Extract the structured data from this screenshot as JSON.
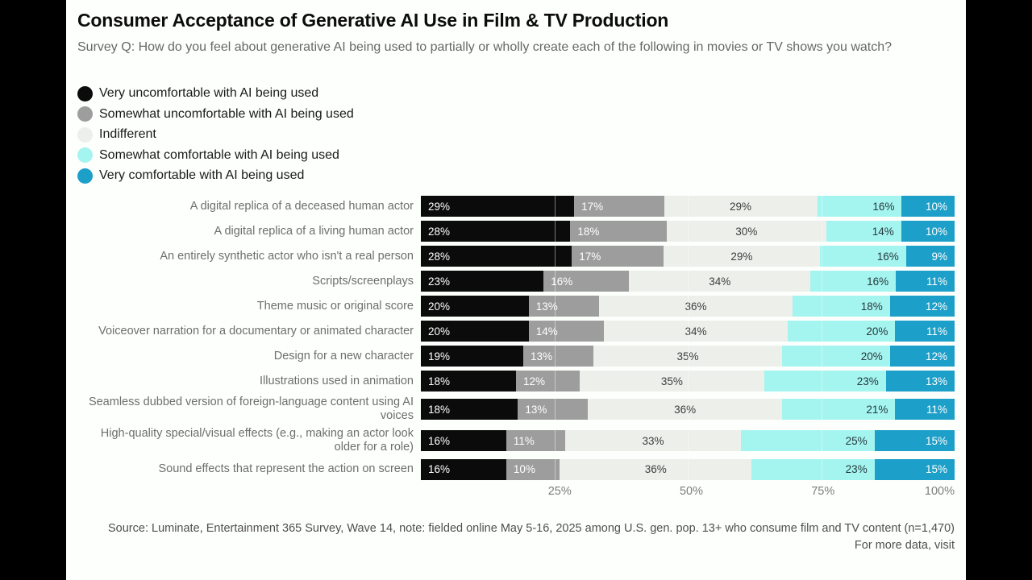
{
  "header": {
    "title": "Consumer Acceptance of Generative AI Use in Film & TV Production",
    "subtitle": "Survey Q: How do you feel about generative AI being used to partially or wholly create each of the following in movies or TV shows you watch?"
  },
  "chart_data": {
    "type": "bar",
    "stacked": true,
    "orientation": "horizontal",
    "value_unit": "%",
    "xlim": [
      0,
      100
    ],
    "x_ticks": [
      "25%",
      "50%",
      "75%",
      "100%"
    ],
    "x_tick_positions": [
      25,
      50,
      75,
      100
    ],
    "grid_positions": [
      25,
      50,
      75
    ],
    "legend_position": "top-left",
    "categories": [
      "A digital replica of a deceased human actor",
      "A digital replica of a living human actor",
      "An entirely synthetic actor who isn't a real person",
      "Scripts/screenplays",
      "Theme music or original score",
      "Voiceover narration for a documentary or animated character",
      "Design for a new character",
      "Illustrations used in animation",
      "Seamless dubbed version of foreign-language content using AI voices",
      "High-quality special/visual effects (e.g., making an actor look older for a role)",
      "Sound effects that represent the action on screen"
    ],
    "series": [
      {
        "name": "Very uncomfortable with AI being used",
        "color": "#0b0b0b",
        "values": [
          29,
          28,
          28,
          23,
          20,
          20,
          19,
          18,
          18,
          16,
          16
        ]
      },
      {
        "name": "Somewhat uncomfortable with AI being used",
        "color": "#9d9d9d",
        "values": [
          17,
          18,
          17,
          16,
          13,
          14,
          13,
          12,
          13,
          11,
          10
        ]
      },
      {
        "name": "Indifferent",
        "color": "#edefea",
        "values": [
          29,
          30,
          29,
          34,
          36,
          34,
          35,
          35,
          36,
          33,
          36
        ]
      },
      {
        "name": "Somewhat comfortable with AI being used",
        "color": "#a4f4f0",
        "values": [
          16,
          14,
          16,
          16,
          18,
          20,
          20,
          23,
          21,
          25,
          23
        ]
      },
      {
        "name": "Very comfortable with AI being used",
        "color": "#1c9fc8",
        "values": [
          10,
          10,
          9,
          11,
          12,
          11,
          12,
          13,
          11,
          15,
          15
        ]
      }
    ]
  },
  "footer": {
    "source": "Source: Luminate, Entertainment 365 Survey, Wave 14, note: fielded online May 5-16, 2025 among U.S. gen. pop. 13+ who consume film and TV content (n=1,470)",
    "more": "For more data, visit"
  }
}
